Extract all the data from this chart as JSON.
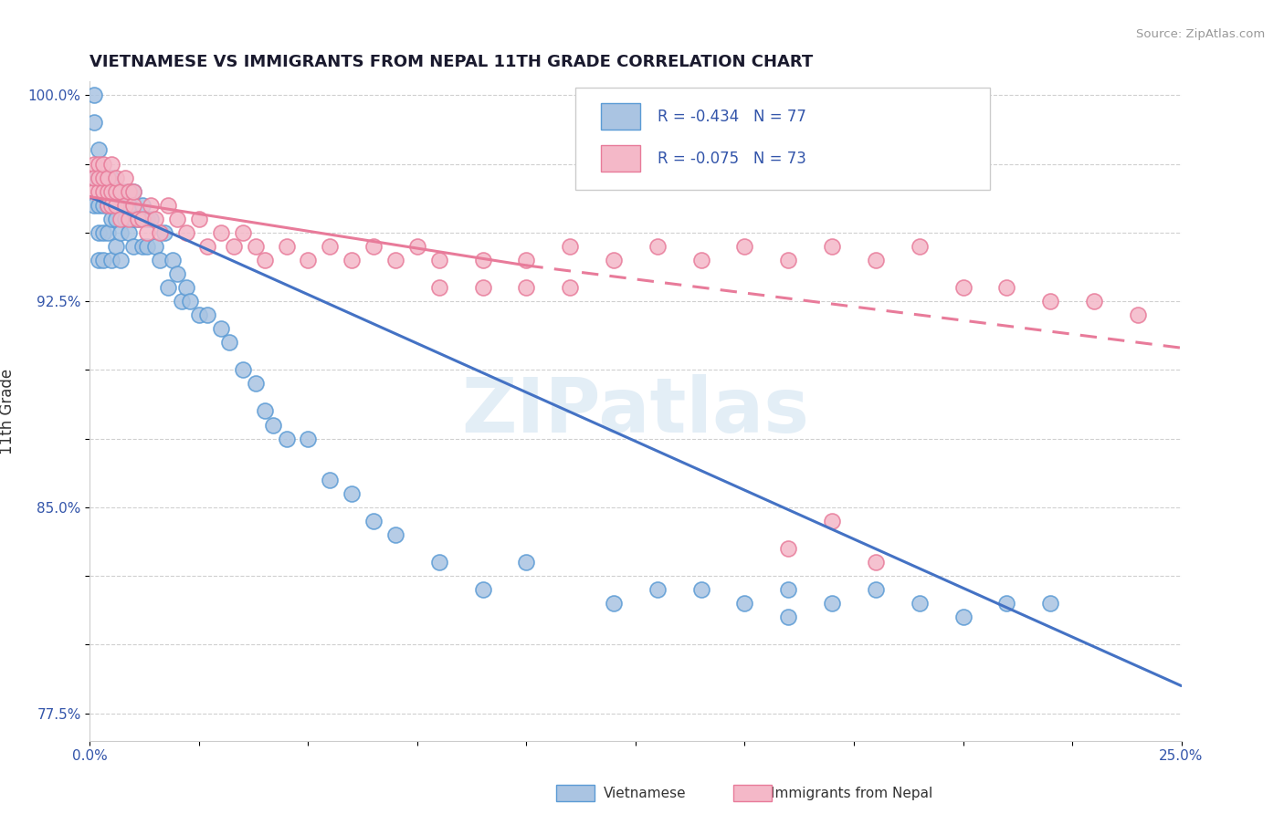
{
  "title": "VIETNAMESE VS IMMIGRANTS FROM NEPAL 11TH GRADE CORRELATION CHART",
  "source": "Source: ZipAtlas.com",
  "ylabel": "11th Grade",
  "xlim": [
    0.0,
    0.25
  ],
  "ylim": [
    0.765,
    1.005
  ],
  "xtick_positions": [
    0.0,
    0.025,
    0.05,
    0.075,
    0.1,
    0.125,
    0.15,
    0.175,
    0.2,
    0.225,
    0.25
  ],
  "xtick_labels": [
    "0.0%",
    "",
    "",
    "",
    "",
    "",
    "",
    "",
    "",
    "",
    "25.0%"
  ],
  "ytick_positions": [
    0.775,
    0.8,
    0.825,
    0.85,
    0.875,
    0.9,
    0.925,
    0.95,
    0.975,
    1.0
  ],
  "ytick_labels": [
    "77.5%",
    "",
    "",
    "85.0%",
    "",
    "",
    "92.5%",
    "",
    "",
    "100.0%"
  ],
  "viet_color": "#aac4e2",
  "nepal_color": "#f4b8c8",
  "viet_edge_color": "#5b9bd5",
  "nepal_edge_color": "#e87b9a",
  "trend_viet_color": "#4472c4",
  "trend_nepal_color": "#e87b9a",
  "legend_viet_R": "-0.434",
  "legend_viet_N": "77",
  "legend_nepal_R": "-0.075",
  "legend_nepal_N": "73",
  "background_color": "#ffffff",
  "grid_color": "#d0d0d0",
  "watermark": "ZIPatlas",
  "viet_x": [
    0.001,
    0.001,
    0.001,
    0.001,
    0.002,
    0.002,
    0.002,
    0.002,
    0.002,
    0.003,
    0.003,
    0.003,
    0.003,
    0.004,
    0.004,
    0.004,
    0.005,
    0.005,
    0.005,
    0.005,
    0.006,
    0.006,
    0.006,
    0.007,
    0.007,
    0.007,
    0.008,
    0.008,
    0.009,
    0.009,
    0.01,
    0.01,
    0.01,
    0.011,
    0.012,
    0.012,
    0.013,
    0.013,
    0.014,
    0.015,
    0.016,
    0.017,
    0.018,
    0.019,
    0.02,
    0.021,
    0.022,
    0.023,
    0.025,
    0.027,
    0.03,
    0.032,
    0.035,
    0.038,
    0.04,
    0.042,
    0.045,
    0.05,
    0.055,
    0.06,
    0.065,
    0.07,
    0.08,
    0.09,
    0.1,
    0.12,
    0.14,
    0.16,
    0.18,
    0.2,
    0.21,
    0.13,
    0.15,
    0.17,
    0.19,
    0.22,
    0.16
  ],
  "viet_y": [
    0.97,
    0.96,
    0.99,
    1.0,
    0.97,
    0.96,
    0.95,
    0.94,
    0.98,
    0.97,
    0.96,
    0.95,
    0.94,
    0.97,
    0.96,
    0.95,
    0.965,
    0.955,
    0.94,
    0.97,
    0.96,
    0.955,
    0.945,
    0.96,
    0.95,
    0.94,
    0.965,
    0.955,
    0.96,
    0.95,
    0.955,
    0.945,
    0.965,
    0.955,
    0.945,
    0.96,
    0.955,
    0.945,
    0.955,
    0.945,
    0.94,
    0.95,
    0.93,
    0.94,
    0.935,
    0.925,
    0.93,
    0.925,
    0.92,
    0.92,
    0.915,
    0.91,
    0.9,
    0.895,
    0.885,
    0.88,
    0.875,
    0.875,
    0.86,
    0.855,
    0.845,
    0.84,
    0.83,
    0.82,
    0.83,
    0.815,
    0.82,
    0.81,
    0.82,
    0.81,
    0.815,
    0.82,
    0.815,
    0.815,
    0.815,
    0.815,
    0.82
  ],
  "nepal_x": [
    0.001,
    0.001,
    0.001,
    0.002,
    0.002,
    0.002,
    0.003,
    0.003,
    0.003,
    0.004,
    0.004,
    0.004,
    0.005,
    0.005,
    0.005,
    0.006,
    0.006,
    0.006,
    0.007,
    0.007,
    0.008,
    0.008,
    0.009,
    0.009,
    0.01,
    0.01,
    0.011,
    0.012,
    0.013,
    0.014,
    0.015,
    0.016,
    0.018,
    0.02,
    0.022,
    0.025,
    0.027,
    0.03,
    0.033,
    0.035,
    0.038,
    0.04,
    0.045,
    0.05,
    0.055,
    0.06,
    0.065,
    0.07,
    0.075,
    0.08,
    0.09,
    0.1,
    0.11,
    0.12,
    0.13,
    0.14,
    0.15,
    0.16,
    0.17,
    0.18,
    0.19,
    0.2,
    0.21,
    0.22,
    0.23,
    0.24,
    0.16,
    0.17,
    0.18,
    0.08,
    0.09,
    0.1,
    0.11
  ],
  "nepal_y": [
    0.975,
    0.965,
    0.97,
    0.975,
    0.965,
    0.97,
    0.965,
    0.97,
    0.975,
    0.96,
    0.965,
    0.97,
    0.96,
    0.965,
    0.975,
    0.96,
    0.965,
    0.97,
    0.955,
    0.965,
    0.96,
    0.97,
    0.955,
    0.965,
    0.96,
    0.965,
    0.955,
    0.955,
    0.95,
    0.96,
    0.955,
    0.95,
    0.96,
    0.955,
    0.95,
    0.955,
    0.945,
    0.95,
    0.945,
    0.95,
    0.945,
    0.94,
    0.945,
    0.94,
    0.945,
    0.94,
    0.945,
    0.94,
    0.945,
    0.94,
    0.94,
    0.94,
    0.945,
    0.94,
    0.945,
    0.94,
    0.945,
    0.94,
    0.945,
    0.94,
    0.945,
    0.93,
    0.93,
    0.925,
    0.925,
    0.92,
    0.835,
    0.845,
    0.83,
    0.93,
    0.93,
    0.93,
    0.93
  ],
  "viet_trend_x0": 0.0,
  "viet_trend_x1": 0.25,
  "viet_trend_y0": 0.963,
  "viet_trend_y1": 0.785,
  "nepal_trend_x0": 0.0,
  "nepal_trend_x1": 0.1,
  "nepal_trend_x2": 0.25,
  "nepal_trend_y0": 0.963,
  "nepal_trend_y1": 0.938,
  "nepal_trend_y2": 0.908
}
